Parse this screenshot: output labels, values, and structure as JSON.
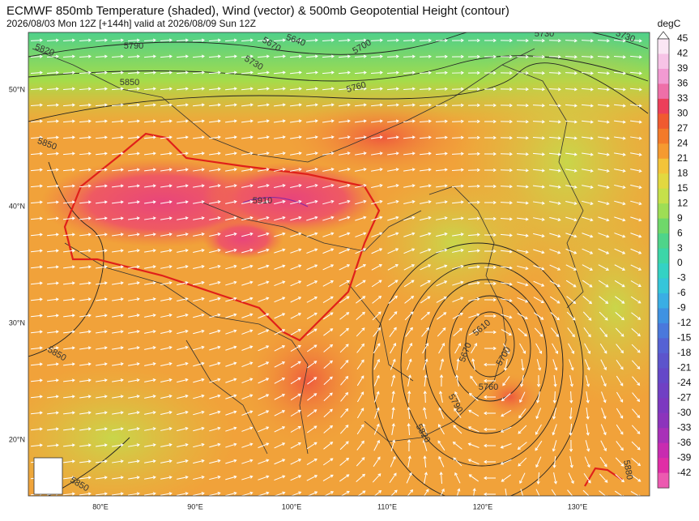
{
  "header": {
    "title": "ECMWF 850mb Temperature (shaded), Wind (vector) & 500mb Geopotential Height (contour)",
    "subtitle": "2026/08/03 Mon 12Z [+144h] valid at 2026/08/09 Sun 12Z"
  },
  "map": {
    "lat_labels": [
      "50°N",
      "40°N",
      "30°N",
      "20°N"
    ],
    "lon_labels": [
      "80°E",
      "90°E",
      "100°E",
      "110°E",
      "120°E",
      "130°E"
    ],
    "contour_labels": [
      "5820",
      "5790",
      "5640",
      "5670",
      "5700",
      "5730",
      "5730",
      "5730",
      "5850",
      "5760",
      "5850",
      "5910",
      "5850",
      "5850",
      "5610",
      "5670",
      "5700",
      "5760",
      "5790",
      "5820",
      "5880"
    ]
  },
  "colorbar": {
    "unit": "degC",
    "ticks": [
      45,
      42,
      39,
      36,
      33,
      30,
      27,
      24,
      21,
      18,
      15,
      12,
      9,
      6,
      3,
      0,
      -3,
      -6,
      -9,
      -12,
      -15,
      -18,
      -21,
      -24,
      -27,
      -30,
      -33,
      -36,
      -39,
      -42
    ]
  }
}
